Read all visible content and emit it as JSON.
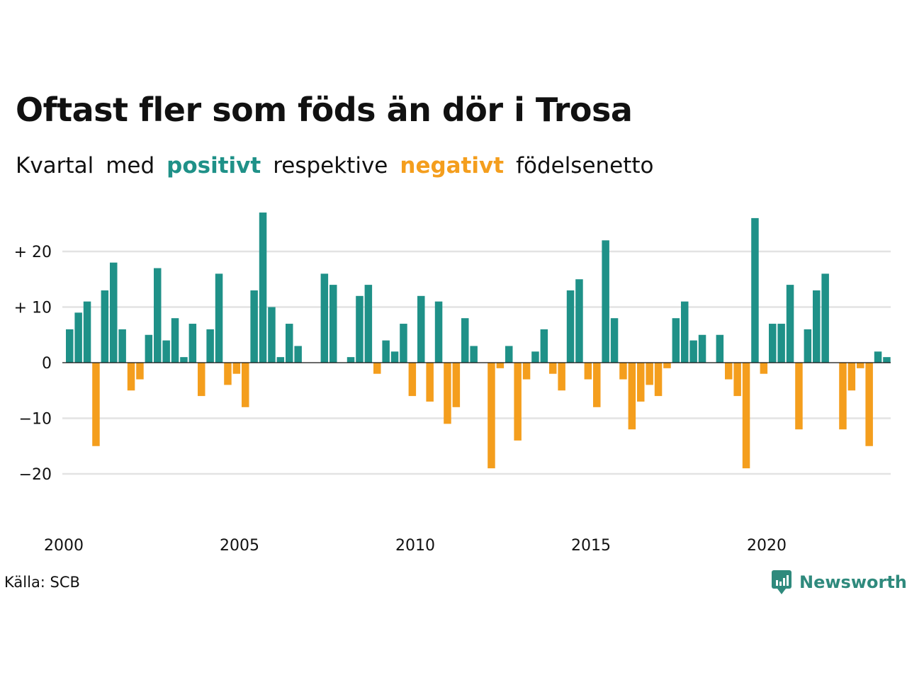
{
  "chart_data": {
    "type": "bar",
    "title": "Oftast fler som föds än dör i Trosa",
    "subtitle_parts": [
      "Kvartal",
      "med",
      "positivt",
      "respektive",
      "negativt",
      "födelsenetto"
    ],
    "xlabel": "",
    "ylabel": "",
    "ylim": [
      -30,
      30
    ],
    "yticks": [
      {
        "value": 20,
        "label": "+ 20"
      },
      {
        "value": 10,
        "label": "+ 10"
      },
      {
        "value": 0,
        "label": "0"
      },
      {
        "value": -10,
        "label": "−10"
      },
      {
        "value": -20,
        "label": "−20"
      }
    ],
    "xticks": [
      "2000",
      "2005",
      "2010",
      "2015",
      "2020"
    ],
    "x_start": "2000Q1",
    "values": [
      6,
      9,
      11,
      -15,
      13,
      18,
      6,
      -5,
      -3,
      5,
      17,
      4,
      8,
      1,
      7,
      -6,
      6,
      16,
      -4,
      -2,
      -8,
      13,
      27,
      10,
      1,
      7,
      3,
      0,
      0,
      16,
      14,
      0,
      1,
      12,
      14,
      -2,
      4,
      2,
      7,
      -6,
      12,
      -7,
      11,
      -11,
      -8,
      8,
      3,
      0,
      -19,
      -1,
      3,
      -14,
      -3,
      2,
      6,
      -2,
      -5,
      13,
      15,
      -3,
      -8,
      22,
      8,
      -3,
      -12,
      -7,
      -4,
      -6,
      -1,
      8,
      11,
      4,
      5,
      0,
      5,
      -3,
      -6,
      -19,
      26,
      -2,
      7,
      7,
      14,
      -12,
      6,
      13,
      16,
      0,
      -12,
      -5,
      -1,
      -15,
      2,
      1
    ],
    "grid": true,
    "legend": "none",
    "colors": {
      "positive": "#1f9188",
      "negative": "#f49e1d"
    }
  },
  "source": "Källa: SCB",
  "brand": "Newsworthy",
  "brand_color": "#2f8a7d"
}
